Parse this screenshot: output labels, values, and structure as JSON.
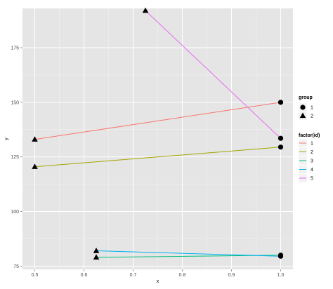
{
  "chart_data": {
    "type": "line",
    "xlabel": "x",
    "ylabel": "y",
    "xlim": [
      0.475,
      1.025
    ],
    "ylim": [
      73.5,
      193
    ],
    "x_ticks": [
      0.5,
      0.6,
      0.7,
      0.8,
      0.9,
      1.0
    ],
    "x_tick_labels": [
      "0.5",
      "0.6",
      "0.7",
      "0.8",
      "0.9",
      "1.0"
    ],
    "y_ticks": [
      75,
      100,
      125,
      150,
      175
    ],
    "y_tick_labels": [
      "75",
      "100",
      "125",
      "150",
      "175"
    ],
    "grid": true,
    "panel_background": "#e5e5e5",
    "gridline_color": "#ffffff",
    "legend_position": "right",
    "shape_legend": {
      "title": "group",
      "entries": [
        {
          "label": "1",
          "shape": "circle"
        },
        {
          "label": "2",
          "shape": "triangle"
        }
      ]
    },
    "color_legend": {
      "title": "factor(id)",
      "entries": [
        {
          "label": "1",
          "color": "#f8766d"
        },
        {
          "label": "2",
          "color": "#a3a500"
        },
        {
          "label": "3",
          "color": "#00bf7d"
        },
        {
          "label": "4",
          "color": "#00b0f6"
        },
        {
          "label": "5",
          "color": "#e76bf3"
        }
      ]
    },
    "series": [
      {
        "id": "1",
        "color": "#f8766d",
        "points": [
          {
            "x": 0.5,
            "y": 133,
            "group": "2"
          },
          {
            "x": 1.0,
            "y": 150,
            "group": "1"
          }
        ]
      },
      {
        "id": "2",
        "color": "#a3a500",
        "points": [
          {
            "x": 0.5,
            "y": 120.5,
            "group": "2"
          },
          {
            "x": 1.0,
            "y": 129.5,
            "group": "1"
          }
        ]
      },
      {
        "id": "3",
        "color": "#00bf7d",
        "points": [
          {
            "x": 0.625,
            "y": 79,
            "group": "2"
          },
          {
            "x": 1.0,
            "y": 80,
            "group": "1"
          }
        ]
      },
      {
        "id": "4",
        "color": "#00b0f6",
        "points": [
          {
            "x": 0.625,
            "y": 82,
            "group": "2"
          },
          {
            "x": 1.0,
            "y": 79.5,
            "group": "1"
          }
        ]
      },
      {
        "id": "5",
        "color": "#e76bf3",
        "points": [
          {
            "x": 0.725,
            "y": 192,
            "group": "2"
          },
          {
            "x": 1.0,
            "y": 133.5,
            "group": "1"
          }
        ]
      }
    ]
  }
}
